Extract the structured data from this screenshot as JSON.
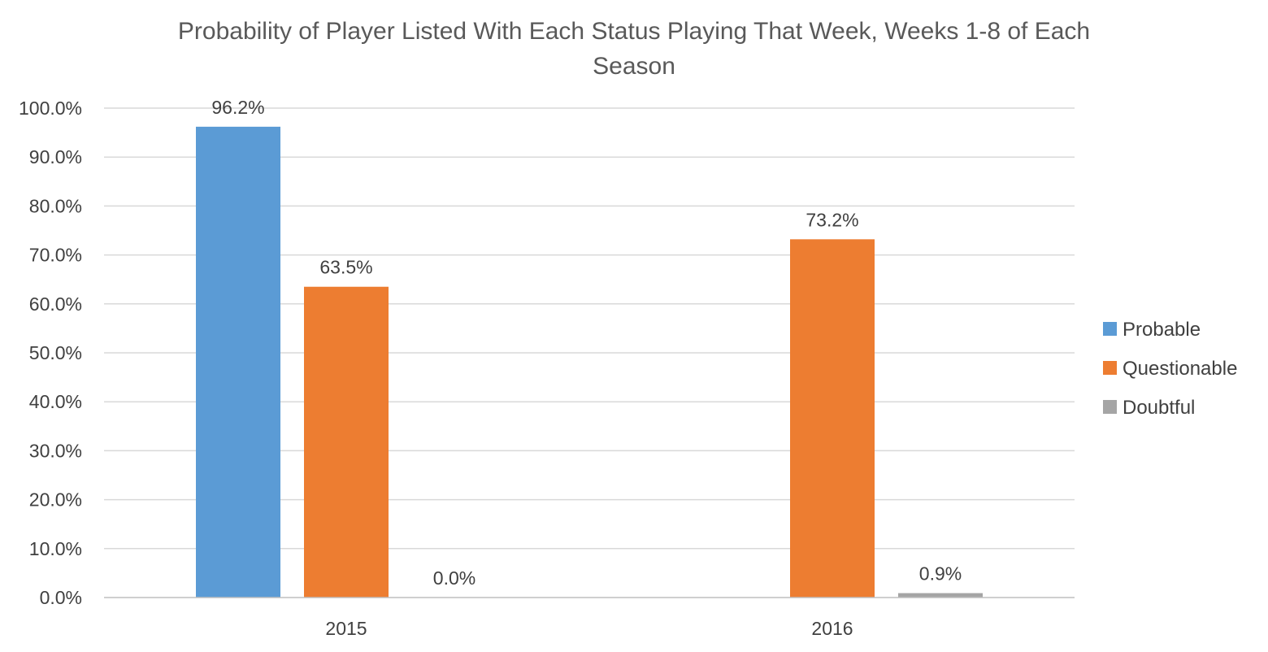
{
  "chart_data": {
    "type": "bar",
    "title": "Probability of Player Listed With Each Status Playing That Week, Weeks 1-8 of Each Season",
    "title_lines": [
      "Probability of Player Listed With Each Status Playing That Week, Weeks 1-8 of Each",
      "Season"
    ],
    "categories": [
      "2015",
      "2016"
    ],
    "series": [
      {
        "name": "Probable",
        "color": "#5b9bd5",
        "values": [
          96.2,
          null
        ],
        "labels": [
          "96.2%",
          null
        ]
      },
      {
        "name": "Questionable",
        "color": "#ed7d31",
        "values": [
          63.5,
          73.2
        ],
        "labels": [
          "63.5%",
          "73.2%"
        ]
      },
      {
        "name": "Doubtful",
        "color": "#a5a5a5",
        "values": [
          0.0,
          0.9
        ],
        "labels": [
          "0.0%",
          "0.9%"
        ]
      }
    ],
    "ylim": [
      0,
      100
    ],
    "yticks": [
      0,
      10,
      20,
      30,
      40,
      50,
      60,
      70,
      80,
      90,
      100
    ],
    "ytick_labels": [
      "0.0%",
      "10.0%",
      "20.0%",
      "30.0%",
      "40.0%",
      "50.0%",
      "60.0%",
      "70.0%",
      "80.0%",
      "90.0%",
      "100.0%"
    ],
    "xlabel": "",
    "ylabel": "",
    "grid": true,
    "legend_position": "right"
  }
}
